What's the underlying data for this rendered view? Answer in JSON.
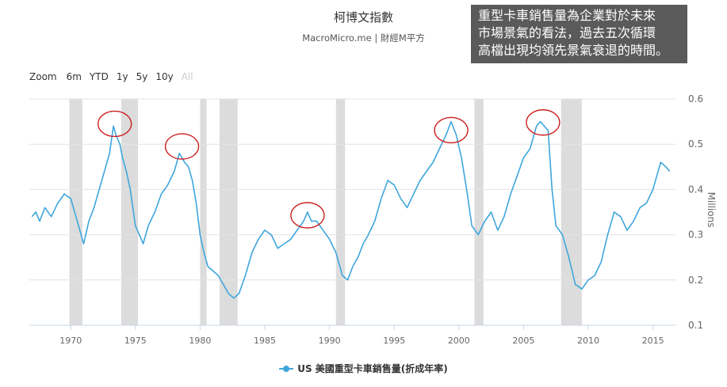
{
  "header": {
    "title": "柯博文指數",
    "subtitle": "MacroMicro.me | 財經M平方"
  },
  "zoom": {
    "label": "Zoom",
    "buttons": [
      "6m",
      "YTD",
      "1y",
      "5y",
      "10y",
      "All"
    ]
  },
  "annotation": {
    "lines": [
      "重型卡車銷售量為企業對於未來",
      "市場景氣的看法，過去五次循環",
      "高檔出現均領先景氣衰退的時間。"
    ]
  },
  "chart_data": {
    "type": "line",
    "title": "",
    "ylabel": "Millions",
    "xlabel": "",
    "xlim": [
      1966.8,
      2016.8
    ],
    "ylim": [
      0.1,
      0.6
    ],
    "x_ticks": [
      1970,
      1975,
      1980,
      1985,
      1990,
      1995,
      2000,
      2005,
      2010,
      2015
    ],
    "y_ticks": [
      0.1,
      0.2,
      0.3,
      0.4,
      0.5,
      0.6
    ],
    "y_tick_labels": [
      "0.1",
      "0.2",
      "0.3",
      "0.4",
      "0.5",
      "0.6"
    ],
    "grid": "horizontal",
    "legend_position": "bottom-center",
    "recessions": [
      [
        1969.9,
        1970.9
      ],
      [
        1973.9,
        1975.2
      ],
      [
        1980.0,
        1980.5
      ],
      [
        1981.5,
        1982.9
      ],
      [
        1990.5,
        1991.2
      ],
      [
        2001.2,
        2001.9
      ],
      [
        2007.9,
        2009.5
      ]
    ],
    "highlight_circles": [
      [
        1973.4,
        0.545
      ],
      [
        1978.6,
        0.495
      ],
      [
        1988.3,
        0.343
      ],
      [
        1999.4,
        0.531
      ],
      [
        2006.5,
        0.548
      ]
    ],
    "series": [
      {
        "name": "US 美國重型卡車銷售量(折成年率)",
        "color": "#3fa6dc",
        "x": [
          1967.0,
          1967.3,
          1967.6,
          1968.0,
          1968.5,
          1969.0,
          1969.5,
          1970.0,
          1970.4,
          1970.8,
          1971.0,
          1971.4,
          1971.8,
          1972.2,
          1972.6,
          1973.0,
          1973.3,
          1973.5,
          1973.8,
          1974.0,
          1974.3,
          1974.6,
          1975.0,
          1975.3,
          1975.6,
          1976.0,
          1976.5,
          1977.0,
          1977.5,
          1978.0,
          1978.4,
          1978.8,
          1979.1,
          1979.4,
          1979.7,
          1980.0,
          1980.3,
          1980.6,
          1981.0,
          1981.4,
          1981.8,
          1982.2,
          1982.6,
          1983.0,
          1983.5,
          1984.0,
          1984.5,
          1985.0,
          1985.5,
          1986.0,
          1986.5,
          1987.0,
          1987.5,
          1988.0,
          1988.3,
          1988.6,
          1989.0,
          1989.5,
          1990.0,
          1990.5,
          1991.0,
          1991.4,
          1991.8,
          1992.2,
          1992.6,
          1993.0,
          1993.5,
          1994.0,
          1994.5,
          1995.0,
          1995.5,
          1996.0,
          1996.5,
          1997.0,
          1997.5,
          1998.0,
          1998.5,
          1999.0,
          1999.4,
          1999.8,
          2000.2,
          2000.6,
          2001.0,
          2001.5,
          2002.0,
          2002.5,
          2003.0,
          2003.5,
          2004.0,
          2004.5,
          2005.0,
          2005.5,
          2006.0,
          2006.3,
          2006.6,
          2006.9,
          2007.2,
          2007.5,
          2008.0,
          2008.5,
          2009.0,
          2009.5,
          2010.0,
          2010.5,
          2011.0,
          2011.5,
          2012.0,
          2012.5,
          2013.0,
          2013.5,
          2014.0,
          2014.5,
          2015.0,
          2015.3,
          2015.6,
          2016.0,
          2016.3
        ],
        "y": [
          0.34,
          0.35,
          0.33,
          0.36,
          0.34,
          0.37,
          0.39,
          0.38,
          0.34,
          0.3,
          0.28,
          0.33,
          0.36,
          0.4,
          0.44,
          0.48,
          0.54,
          0.52,
          0.5,
          0.47,
          0.44,
          0.4,
          0.32,
          0.3,
          0.28,
          0.32,
          0.35,
          0.39,
          0.41,
          0.44,
          0.48,
          0.46,
          0.45,
          0.42,
          0.37,
          0.3,
          0.26,
          0.23,
          0.22,
          0.21,
          0.19,
          0.17,
          0.16,
          0.17,
          0.21,
          0.26,
          0.29,
          0.31,
          0.3,
          0.27,
          0.28,
          0.29,
          0.31,
          0.33,
          0.35,
          0.33,
          0.33,
          0.31,
          0.29,
          0.26,
          0.21,
          0.2,
          0.23,
          0.25,
          0.28,
          0.3,
          0.33,
          0.38,
          0.42,
          0.41,
          0.38,
          0.36,
          0.39,
          0.42,
          0.44,
          0.46,
          0.49,
          0.52,
          0.55,
          0.52,
          0.47,
          0.4,
          0.32,
          0.3,
          0.33,
          0.35,
          0.31,
          0.34,
          0.39,
          0.43,
          0.47,
          0.49,
          0.54,
          0.55,
          0.54,
          0.53,
          0.4,
          0.32,
          0.3,
          0.25,
          0.19,
          0.18,
          0.2,
          0.21,
          0.24,
          0.3,
          0.35,
          0.34,
          0.31,
          0.33,
          0.36,
          0.37,
          0.4,
          0.43,
          0.46,
          0.45,
          0.44
        ]
      }
    ]
  }
}
